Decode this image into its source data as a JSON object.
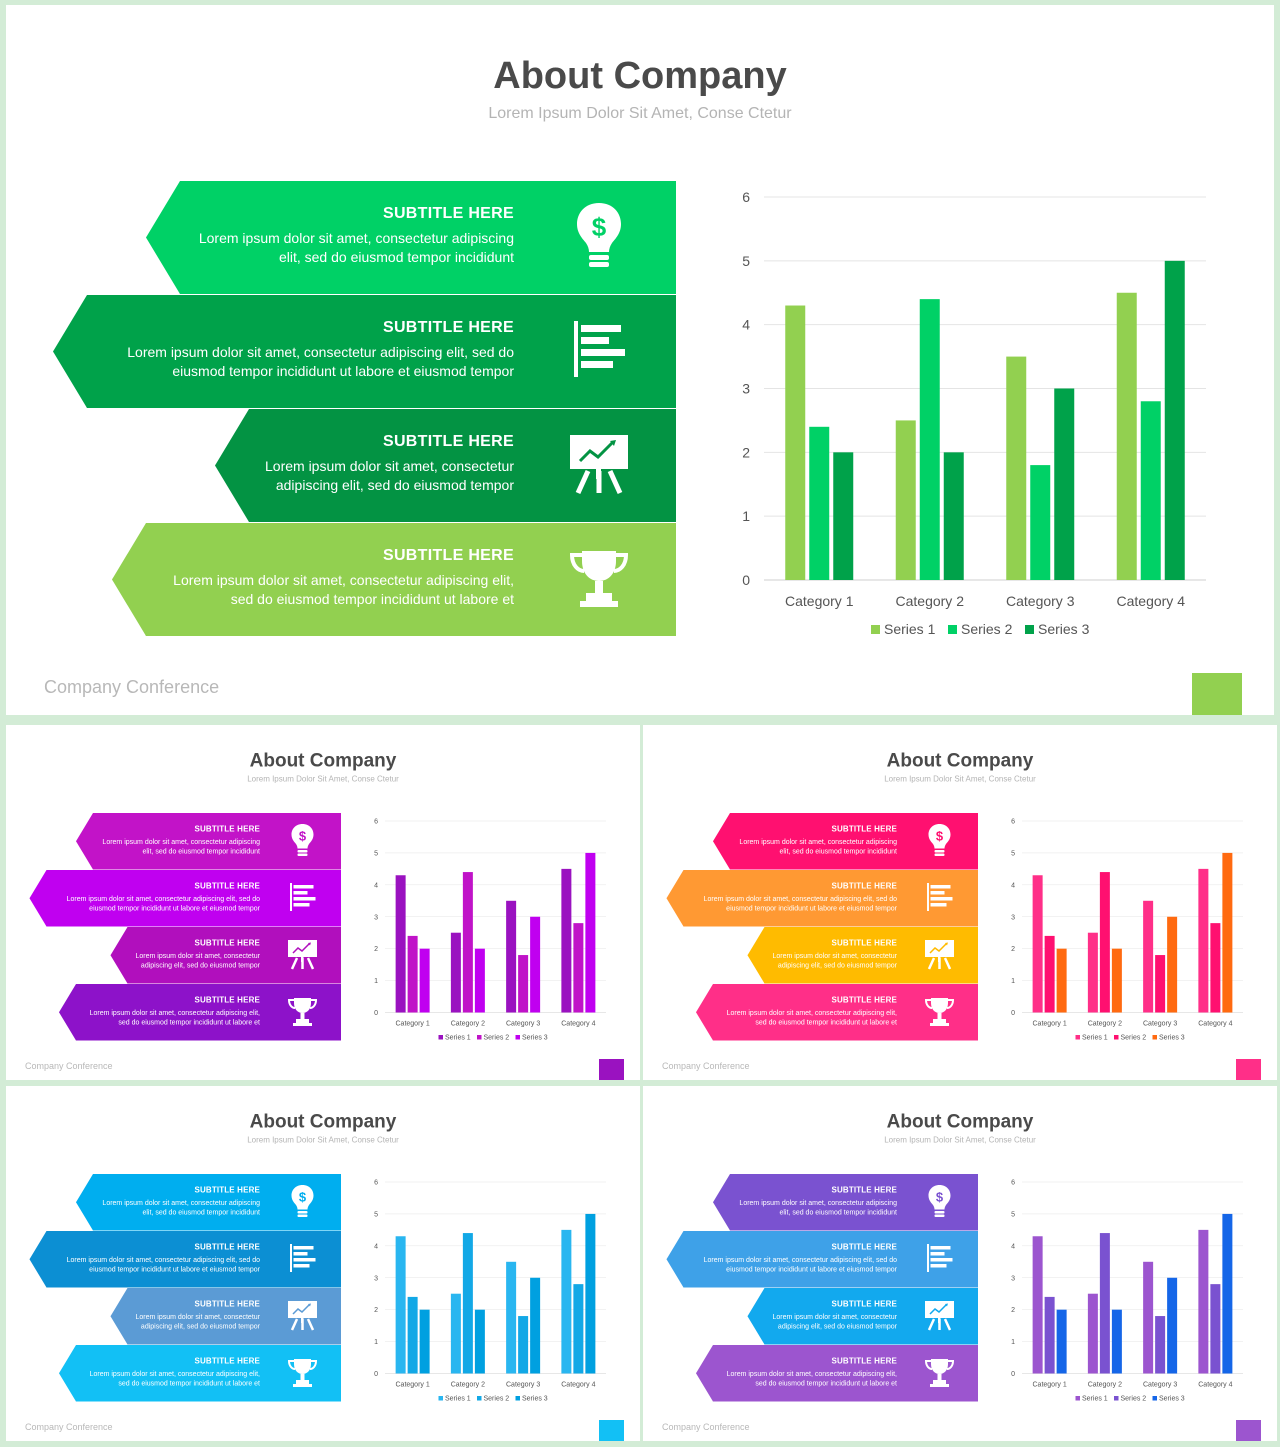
{
  "slide": {
    "title": "About Company",
    "subtitle": "Lorem Ipsum Dolor Sit Amet, Conse Ctetur",
    "footer": "Company Conference"
  },
  "bands": [
    {
      "heading": "SUBTITLE HERE",
      "line1": "Lorem ipsum dolor sit amet, consectetur adipiscing",
      "line2": "elit, sed do eiusmod tempor incididunt",
      "icon": "lightbulb-dollar-icon"
    },
    {
      "heading": "SUBTITLE HERE",
      "line1": "Lorem ipsum dolor sit amet, consectetur adipiscing elit, sed do",
      "line2": "eiusmod tempor incididunt ut labore et eiusmod tempor",
      "icon": "bar-list-icon"
    },
    {
      "heading": "SUBTITLE HERE",
      "line1": "Lorem ipsum dolor sit amet, consectetur",
      "line2": "adipiscing elit, sed do eiusmod tempor",
      "icon": "presentation-board-icon"
    },
    {
      "heading": "SUBTITLE HERE",
      "line1": "Lorem ipsum dolor sit amet, consectetur adipiscing elit,",
      "line2": "sed do eiusmod tempor incididunt ut labore et",
      "icon": "trophy-icon"
    }
  ],
  "themes": [
    {
      "name": "green",
      "bands": [
        "#00d166",
        "#00a24a",
        "#039343",
        "#92d050"
      ],
      "series": [
        "#92d050",
        "#00d166",
        "#00a24a"
      ],
      "corner": "#92d050"
    },
    {
      "name": "purple",
      "bands": [
        "#c213c8",
        "#c000f0",
        "#b10fbd",
        "#8d12c9"
      ],
      "series": [
        "#9a12c0",
        "#c013c8",
        "#c000f0"
      ],
      "corner": "#9a12c0"
    },
    {
      "name": "pink-orange",
      "bands": [
        "#ff1070",
        "#ff9933",
        "#ffbb00",
        "#ff2f88"
      ],
      "series": [
        "#ff2f88",
        "#ff1070",
        "#ff6a10"
      ],
      "corner": "#ff2f88"
    },
    {
      "name": "blue",
      "bands": [
        "#00aeef",
        "#0c8fd3",
        "#5b9bd5",
        "#12c0f5"
      ],
      "series": [
        "#29b6f0",
        "#12a8e6",
        "#00a0e0"
      ],
      "corner": "#12c0f5"
    },
    {
      "name": "violet-blue",
      "bands": [
        "#7a52d0",
        "#3ea1e8",
        "#12a9ee",
        "#9c55cf"
      ],
      "series": [
        "#9c55cf",
        "#7a52d0",
        "#1566e8"
      ],
      "corner": "#9c55cf"
    }
  ],
  "chart_data": {
    "type": "bar",
    "categories": [
      "Category 1",
      "Category 2",
      "Category 3",
      "Category 4"
    ],
    "series": [
      {
        "name": "Series 1",
        "values": [
          4.3,
          2.5,
          3.5,
          4.5
        ]
      },
      {
        "name": "Series 2",
        "values": [
          2.4,
          4.4,
          1.8,
          2.8
        ]
      },
      {
        "name": "Series 3",
        "values": [
          2.0,
          2.0,
          3.0,
          5.0
        ]
      }
    ],
    "ylim": [
      0,
      6
    ],
    "yticks": [
      0,
      1,
      2,
      3,
      4,
      5,
      6
    ],
    "grid": true,
    "legend": "bottom"
  }
}
